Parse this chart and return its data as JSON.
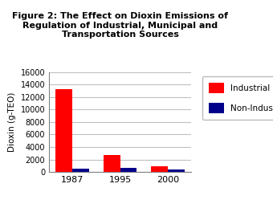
{
  "title": "Figure 2: The Effect on Dioxin Emissions of\nRegulation of Industrial, Municipal and\nTransportation Sources",
  "years": [
    "1987",
    "1995",
    "2000"
  ],
  "industrial": [
    13300,
    2700,
    900
  ],
  "non_industrial": [
    550,
    600,
    450
  ],
  "industrial_color": "#ff0000",
  "non_industrial_color": "#00008b",
  "ylabel": "Dioxin (g-TEO)",
  "ylim": [
    0,
    16000
  ],
  "yticks": [
    0,
    2000,
    4000,
    6000,
    8000,
    10000,
    12000,
    14000,
    16000
  ],
  "legend_labels": [
    "Industrial",
    "Non-Industrial"
  ],
  "background_color": "#ffffff",
  "plot_bg_color": "#ffffff",
  "bar_width": 0.35,
  "title_fontsize": 8.0,
  "grid_color": "#c0c0c0",
  "figsize": [
    3.4,
    2.49
  ],
  "dpi": 100
}
